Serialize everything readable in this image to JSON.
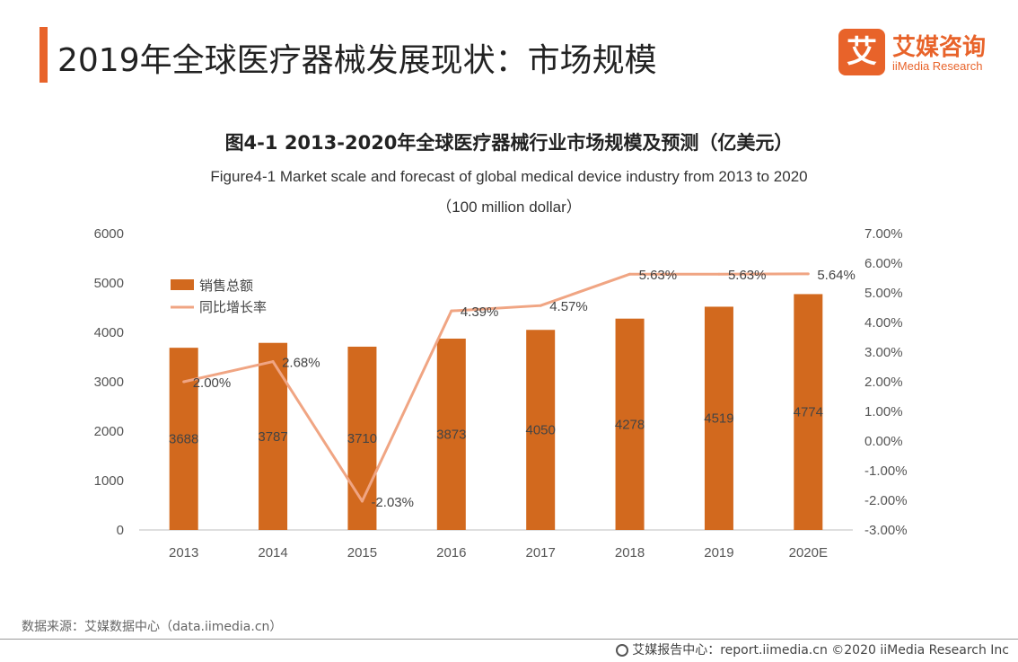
{
  "header": {
    "title": "2019年全球医疗器械发展现状：市场规模",
    "logo_mark": "艾",
    "logo_cn": "艾媒咨询",
    "logo_en": "iiMedia Research"
  },
  "chart_data": {
    "type": "bar",
    "title": "图4-1 2013-2020年全球医疗器械行业市场规模及预测（亿美元）",
    "subtitle_line1": "Figure4-1 Market scale and forecast of global medical device industry from 2013 to 2020",
    "subtitle_line2": "（100 million dollar）",
    "categories": [
      "2013",
      "2014",
      "2015",
      "2016",
      "2017",
      "2018",
      "2019",
      "2020E"
    ],
    "series": [
      {
        "name": "销售总额",
        "type": "bar",
        "axis": "left",
        "color": "#d2691e",
        "values": [
          3688,
          3787,
          3710,
          3873,
          4050,
          4278,
          4519,
          4774
        ],
        "labels": [
          "3688",
          "3787",
          "3710",
          "3873",
          "4050",
          "4278",
          "4519",
          "4774"
        ]
      },
      {
        "name": "同比增长率",
        "type": "line",
        "axis": "right",
        "color": "#f0a583",
        "values": [
          2.0,
          2.68,
          -2.03,
          4.39,
          4.57,
          5.63,
          5.63,
          5.64
        ],
        "labels": [
          "2.00%",
          "2.68%",
          "-2.03%",
          "4.39%",
          "4.57%",
          "5.63%",
          "5.63%",
          "5.64%"
        ]
      }
    ],
    "y_left": {
      "min": 0,
      "max": 6000,
      "ticks": [
        "0",
        "1000",
        "2000",
        "3000",
        "4000",
        "5000",
        "6000"
      ]
    },
    "y_right": {
      "min": -3,
      "max": 7,
      "ticks": [
        "-3.00%",
        "-2.00%",
        "-1.00%",
        "0.00%",
        "1.00%",
        "2.00%",
        "3.00%",
        "4.00%",
        "5.00%",
        "6.00%",
        "7.00%"
      ]
    },
    "legend_position": "top-left",
    "grid": false
  },
  "footer": {
    "source": "数据来源：艾媒数据中心（data.iimedia.cn）",
    "credit": "艾媒报告中心：report.iimedia.cn  ©2020  iiMedia Research  Inc"
  }
}
